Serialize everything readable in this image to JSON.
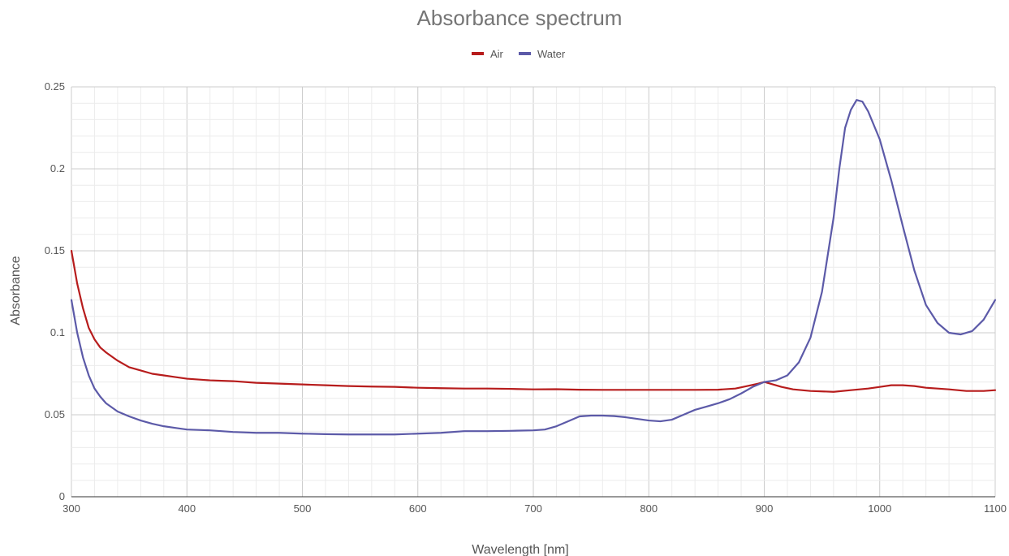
{
  "chart_data": {
    "type": "line",
    "title": "Absorbance spectrum",
    "xlabel": "Wavelength [nm]",
    "ylabel": "Absorbance",
    "xlim": [
      300,
      1100
    ],
    "ylim": [
      0,
      0.25
    ],
    "x_ticks": [
      "300",
      "400",
      "500",
      "600",
      "700",
      "800",
      "900",
      "1000",
      "1100"
    ],
    "y_ticks": [
      "0",
      "0.05",
      "0.1",
      "0.15",
      "0.2",
      "0.25"
    ],
    "x_tick_values": [
      300,
      400,
      500,
      600,
      700,
      800,
      900,
      1000,
      1100
    ],
    "y_tick_values": [
      0,
      0.05,
      0.1,
      0.15,
      0.2,
      0.25
    ],
    "grid": true,
    "legend_position": "top-center",
    "series": [
      {
        "name": "Air",
        "color": "#b71c1c",
        "points": [
          [
            300,
            0.15
          ],
          [
            305,
            0.13
          ],
          [
            310,
            0.115
          ],
          [
            315,
            0.103
          ],
          [
            320,
            0.096
          ],
          [
            325,
            0.091
          ],
          [
            330,
            0.088
          ],
          [
            340,
            0.083
          ],
          [
            350,
            0.079
          ],
          [
            360,
            0.077
          ],
          [
            370,
            0.075
          ],
          [
            380,
            0.074
          ],
          [
            390,
            0.073
          ],
          [
            400,
            0.072
          ],
          [
            420,
            0.071
          ],
          [
            440,
            0.0705
          ],
          [
            460,
            0.0695
          ],
          [
            480,
            0.069
          ],
          [
            500,
            0.0685
          ],
          [
            520,
            0.068
          ],
          [
            540,
            0.0675
          ],
          [
            560,
            0.0672
          ],
          [
            580,
            0.067
          ],
          [
            600,
            0.0665
          ],
          [
            620,
            0.0662
          ],
          [
            640,
            0.066
          ],
          [
            660,
            0.066
          ],
          [
            680,
            0.0658
          ],
          [
            700,
            0.0655
          ],
          [
            720,
            0.0656
          ],
          [
            740,
            0.0653
          ],
          [
            760,
            0.0652
          ],
          [
            780,
            0.0652
          ],
          [
            800,
            0.0652
          ],
          [
            820,
            0.0652
          ],
          [
            840,
            0.0652
          ],
          [
            860,
            0.0653
          ],
          [
            875,
            0.066
          ],
          [
            885,
            0.0675
          ],
          [
            895,
            0.069
          ],
          [
            900,
            0.07
          ],
          [
            905,
            0.069
          ],
          [
            915,
            0.067
          ],
          [
            925,
            0.0655
          ],
          [
            940,
            0.0645
          ],
          [
            960,
            0.064
          ],
          [
            975,
            0.065
          ],
          [
            990,
            0.066
          ],
          [
            1000,
            0.067
          ],
          [
            1010,
            0.068
          ],
          [
            1020,
            0.068
          ],
          [
            1030,
            0.0675
          ],
          [
            1040,
            0.0665
          ],
          [
            1050,
            0.066
          ],
          [
            1060,
            0.0655
          ],
          [
            1075,
            0.0645
          ],
          [
            1090,
            0.0645
          ],
          [
            1100,
            0.065
          ]
        ]
      },
      {
        "name": "Water",
        "color": "#5c5aa8",
        "points": [
          [
            300,
            0.12
          ],
          [
            305,
            0.1
          ],
          [
            310,
            0.085
          ],
          [
            315,
            0.074
          ],
          [
            320,
            0.066
          ],
          [
            325,
            0.061
          ],
          [
            330,
            0.057
          ],
          [
            340,
            0.052
          ],
          [
            350,
            0.049
          ],
          [
            360,
            0.0465
          ],
          [
            370,
            0.0445
          ],
          [
            380,
            0.043
          ],
          [
            390,
            0.042
          ],
          [
            400,
            0.041
          ],
          [
            420,
            0.0405
          ],
          [
            440,
            0.0395
          ],
          [
            460,
            0.039
          ],
          [
            480,
            0.039
          ],
          [
            500,
            0.0385
          ],
          [
            520,
            0.0382
          ],
          [
            540,
            0.038
          ],
          [
            560,
            0.038
          ],
          [
            580,
            0.038
          ],
          [
            600,
            0.0385
          ],
          [
            620,
            0.039
          ],
          [
            640,
            0.04
          ],
          [
            660,
            0.04
          ],
          [
            680,
            0.0402
          ],
          [
            700,
            0.0405
          ],
          [
            710,
            0.041
          ],
          [
            720,
            0.043
          ],
          [
            730,
            0.046
          ],
          [
            740,
            0.049
          ],
          [
            750,
            0.0495
          ],
          [
            760,
            0.0495
          ],
          [
            770,
            0.0492
          ],
          [
            780,
            0.0485
          ],
          [
            790,
            0.0475
          ],
          [
            800,
            0.0465
          ],
          [
            810,
            0.046
          ],
          [
            820,
            0.047
          ],
          [
            830,
            0.05
          ],
          [
            840,
            0.053
          ],
          [
            850,
            0.055
          ],
          [
            860,
            0.057
          ],
          [
            870,
            0.0595
          ],
          [
            880,
            0.063
          ],
          [
            890,
            0.067
          ],
          [
            900,
            0.07
          ],
          [
            910,
            0.071
          ],
          [
            920,
            0.074
          ],
          [
            930,
            0.082
          ],
          [
            940,
            0.097
          ],
          [
            950,
            0.125
          ],
          [
            960,
            0.17
          ],
          [
            965,
            0.2
          ],
          [
            970,
            0.225
          ],
          [
            975,
            0.236
          ],
          [
            980,
            0.242
          ],
          [
            985,
            0.241
          ],
          [
            990,
            0.235
          ],
          [
            1000,
            0.218
          ],
          [
            1010,
            0.193
          ],
          [
            1020,
            0.165
          ],
          [
            1030,
            0.138
          ],
          [
            1040,
            0.117
          ],
          [
            1050,
            0.106
          ],
          [
            1060,
            0.1
          ],
          [
            1070,
            0.099
          ],
          [
            1080,
            0.101
          ],
          [
            1090,
            0.108
          ],
          [
            1100,
            0.12
          ]
        ]
      }
    ]
  }
}
